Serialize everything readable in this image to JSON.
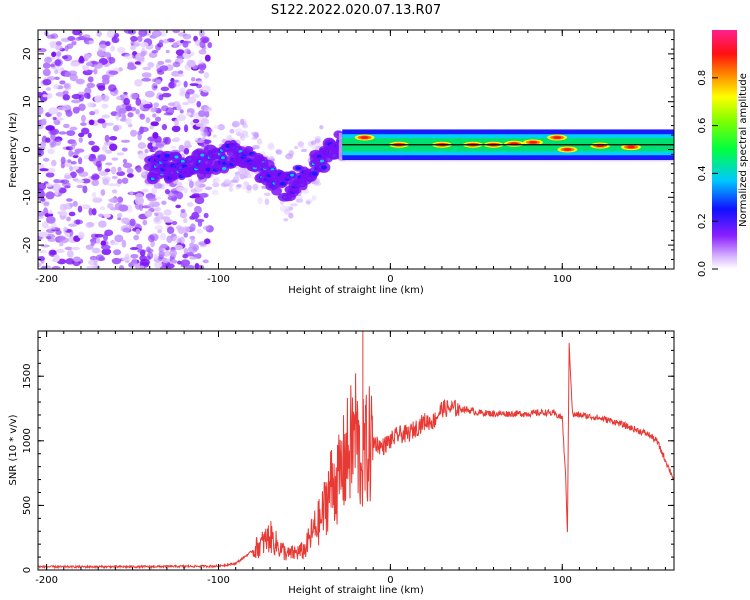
{
  "title": "S122.2022.020.07.13.R07",
  "colors": {
    "axis": "#000000",
    "snr_line": "#e83a35",
    "reference_line": "#000000"
  },
  "chart_data": [
    {
      "type": "heatmap",
      "xlabel": "Height of straight line (km)",
      "ylabel": "Frequency (Hz)",
      "xlim": [
        -205,
        165
      ],
      "ylim": [
        -25,
        25
      ],
      "xticks": [
        -200,
        -100,
        0,
        100
      ],
      "yticks": [
        -20,
        -10,
        0,
        10,
        20
      ],
      "colorbar": {
        "label": "Normalized spectral amplitude",
        "range": [
          0,
          1
        ],
        "ticks": [
          0.0,
          0.2,
          0.4,
          0.6,
          0.8
        ],
        "colormap": "rainbow, white-violet-blue-cyan-green-yellow-orange-red-magenta"
      },
      "signal_track": [
        {
          "x": -140,
          "y": -4
        },
        {
          "x": -120,
          "y": -3.5
        },
        {
          "x": -100,
          "y": -2
        },
        {
          "x": -85,
          "y": -1
        },
        {
          "x": -75,
          "y": -4
        },
        {
          "x": -60,
          "y": -8
        },
        {
          "x": -50,
          "y": -5
        },
        {
          "x": -40,
          "y": -2
        },
        {
          "x": -30,
          "y": 1
        },
        {
          "x": -20,
          "y": 1
        },
        {
          "x": 0,
          "y": 1
        },
        {
          "x": 100,
          "y": 1
        },
        {
          "x": 165,
          "y": 1
        }
      ]
    },
    {
      "type": "line",
      "xlabel": "Height of straight line (km)",
      "ylabel": "SNR (10 * v/v)",
      "xlim": [
        -205,
        165
      ],
      "ylim": [
        0,
        1850
      ],
      "xticks": [
        -200,
        -100,
        0,
        100
      ],
      "yticks": [
        0,
        500,
        1000,
        1500
      ],
      "series": [
        {
          "x": [
            -205,
            -150,
            -100,
            -90,
            -80,
            -75,
            -70,
            -65,
            -60,
            -50,
            -45,
            -40,
            -35,
            -30,
            -25,
            -22,
            -20,
            -18,
            -15,
            -10,
            -5,
            0,
            5,
            10,
            15,
            20,
            25,
            30,
            35,
            40,
            45,
            50,
            60,
            70,
            80,
            90,
            95,
            100,
            102,
            103,
            104,
            106,
            110,
            120,
            130,
            140,
            150,
            155,
            160,
            165
          ],
          "y": [
            25,
            25,
            30,
            50,
            150,
            200,
            260,
            180,
            120,
            150,
            300,
            400,
            650,
            700,
            900,
            1000,
            1100,
            850,
            900,
            1000,
            950,
            1000,
            1050,
            1050,
            1100,
            1150,
            1150,
            1250,
            1250,
            1250,
            1240,
            1220,
            1210,
            1210,
            1210,
            1220,
            1210,
            1180,
            700,
            300,
            1750,
            1200,
            1200,
            1180,
            1150,
            1100,
            1050,
            1000,
            850,
            700
          ]
        }
      ]
    }
  ]
}
